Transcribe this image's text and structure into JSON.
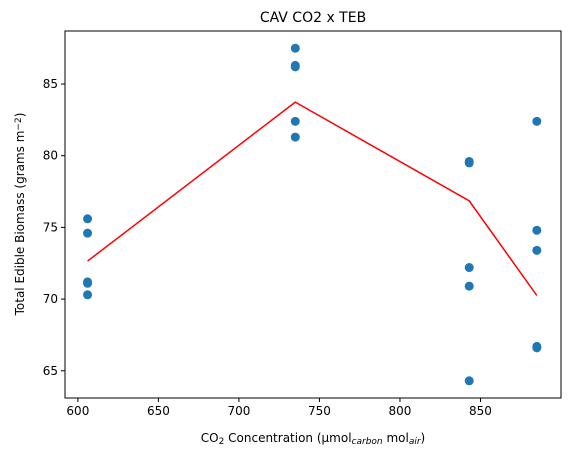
{
  "chart_data": {
    "type": "scatter",
    "title": "CAV CO2 x TEB",
    "xlabel": {
      "parts": [
        {
          "text": "CO"
        },
        {
          "text": "2",
          "sub": true
        },
        {
          "text": " Concentration (µmol"
        },
        {
          "text": "carbon",
          "sub": true,
          "italic": true
        },
        {
          "text": " mol"
        },
        {
          "text": "air",
          "sub": true,
          "italic": true
        },
        {
          "text": ")"
        }
      ]
    },
    "ylabel": {
      "parts": [
        {
          "text": "Total Edible Biomass (grams m"
        },
        {
          "text": "−2",
          "sup": true
        },
        {
          "text": ")"
        }
      ]
    },
    "xlim": [
      592,
      900
    ],
    "ylim": [
      63.1,
      88.7
    ],
    "xticks": [
      600,
      650,
      700,
      750,
      800,
      850
    ],
    "yticks": [
      65,
      70,
      75,
      80,
      85
    ],
    "grid": false,
    "legend": "none",
    "series": [
      {
        "kind": "scatter",
        "color": "#1f77b4",
        "x": [
          606,
          606,
          606,
          606,
          606,
          735,
          735,
          735,
          735,
          735,
          843,
          843,
          843,
          843,
          843,
          885,
          885,
          885,
          885,
          885
        ],
        "y": [
          75.6,
          74.6,
          71.2,
          71.1,
          70.3,
          87.5,
          86.3,
          86.2,
          82.4,
          81.3,
          79.6,
          79.5,
          72.2,
          70.9,
          64.3,
          82.4,
          74.8,
          73.4,
          66.7,
          66.6
        ]
      },
      {
        "kind": "line",
        "color": "#ff0000",
        "x": [
          606,
          735,
          843,
          885
        ],
        "y": [
          72.65,
          83.74,
          76.85,
          70.25
        ]
      }
    ]
  }
}
